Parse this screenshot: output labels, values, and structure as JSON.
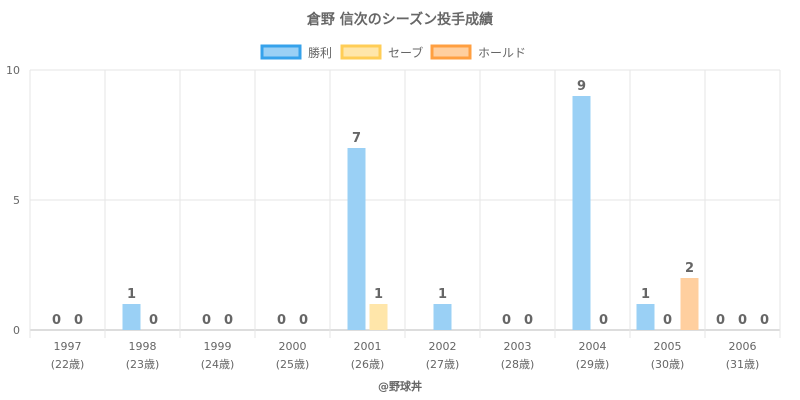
{
  "chart_data": {
    "type": "bar",
    "title": "倉野 信次のシーズン投手成績",
    "categories": [
      "1997",
      "1998",
      "1999",
      "2000",
      "2001",
      "2002",
      "2003",
      "2004",
      "2005",
      "2006"
    ],
    "category_sublabels": [
      "(22歳)",
      "(23歳)",
      "(24歳)",
      "(25歳)",
      "(26歳)",
      "(27歳)",
      "(28歳)",
      "(29歳)",
      "(30歳)",
      "(31歳)"
    ],
    "series": [
      {
        "name": "勝利",
        "color": "#36a2eb",
        "fill": "#9ad0f5",
        "values": [
          0,
          1,
          0,
          0,
          7,
          1,
          0,
          9,
          1,
          0
        ]
      },
      {
        "name": "セーブ",
        "color": "#ffcd56",
        "fill": "#ffe6aa",
        "values": [
          0,
          0,
          0,
          0,
          1,
          null,
          0,
          0,
          0,
          0
        ]
      },
      {
        "name": "ホールド",
        "color": "#ff9f40",
        "fill": "#ffcf9f",
        "values": [
          null,
          null,
          null,
          null,
          null,
          null,
          null,
          null,
          2,
          0
        ]
      }
    ],
    "ylim": [
      0,
      10
    ],
    "yticks": [
      0,
      5,
      10
    ],
    "grid": true,
    "legend_position": "top",
    "credit": "@野球丼"
  }
}
